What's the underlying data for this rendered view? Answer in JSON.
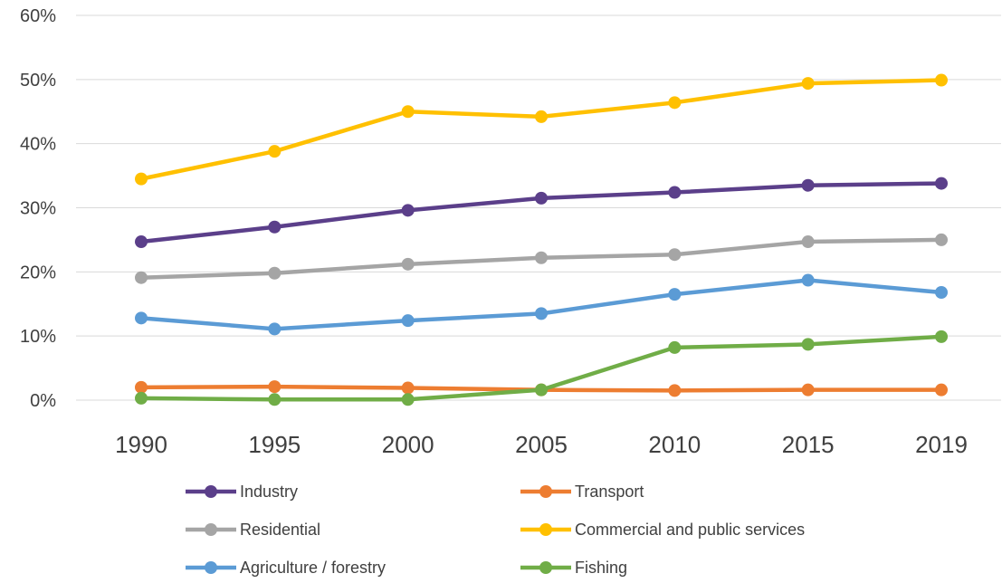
{
  "chart_data": {
    "type": "line",
    "x": [
      "1990",
      "1995",
      "2000",
      "2005",
      "2010",
      "2015",
      "2019"
    ],
    "ylim": [
      0,
      60
    ],
    "yticks": [
      "0%",
      "10%",
      "20%",
      "30%",
      "40%",
      "50%",
      "60%"
    ],
    "grid": true,
    "legend_position": "bottom",
    "series": [
      {
        "name": "Industry",
        "color": "#5b3f8a",
        "values": [
          24.7,
          27.0,
          29.6,
          31.5,
          32.4,
          33.5,
          33.8
        ]
      },
      {
        "name": "Transport",
        "color": "#ed7d31",
        "values": [
          2.0,
          2.1,
          1.9,
          1.6,
          1.5,
          1.6,
          1.6
        ]
      },
      {
        "name": "Residential",
        "color": "#a5a5a5",
        "values": [
          19.1,
          19.8,
          21.2,
          22.2,
          22.7,
          24.7,
          25.0
        ]
      },
      {
        "name": "Commercial and public services",
        "color": "#ffc000",
        "values": [
          34.5,
          38.8,
          45.0,
          44.2,
          46.4,
          49.4,
          49.9
        ]
      },
      {
        "name": "Agriculture / forestry",
        "color": "#5b9bd5",
        "values": [
          12.8,
          11.1,
          12.4,
          13.5,
          16.5,
          18.7,
          16.8
        ]
      },
      {
        "name": "Fishing",
        "color": "#70ad47",
        "values": [
          0.3,
          0.1,
          0.1,
          1.6,
          8.2,
          8.7,
          9.9
        ]
      }
    ]
  }
}
